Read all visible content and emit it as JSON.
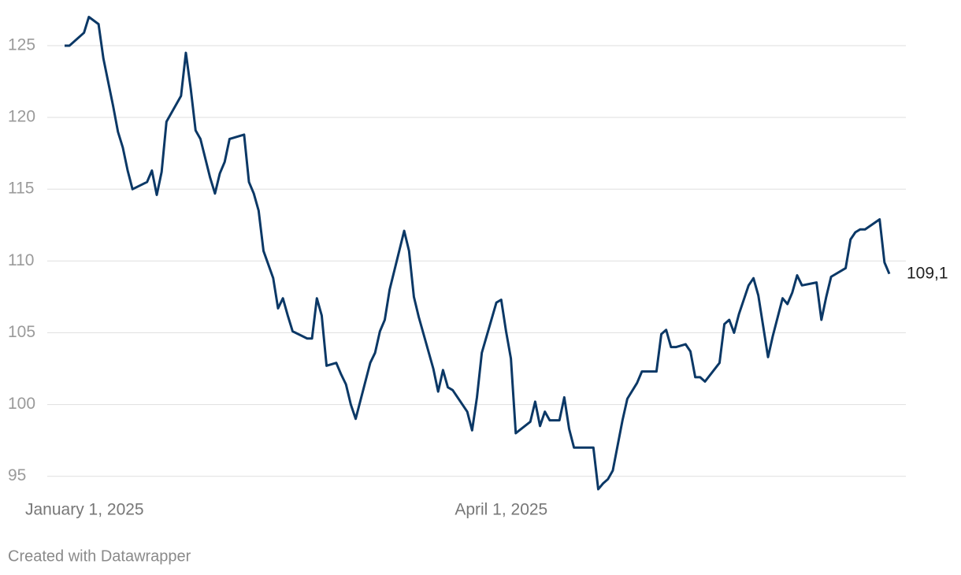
{
  "chart_data": {
    "type": "line",
    "x": [
      "2025-01-01",
      "2025-01-02",
      "2025-01-05",
      "2025-01-06",
      "2025-01-08",
      "2025-01-09",
      "2025-01-11",
      "2025-01-12",
      "2025-01-13",
      "2025-01-14",
      "2025-01-15",
      "2025-01-18",
      "2025-01-19",
      "2025-01-20",
      "2025-01-21",
      "2025-01-22",
      "2025-01-25",
      "2025-01-26",
      "2025-01-27",
      "2025-01-28",
      "2025-01-29",
      "2025-01-31",
      "2025-02-01",
      "2025-02-02",
      "2025-02-03",
      "2025-02-04",
      "2025-02-07",
      "2025-02-08",
      "2025-02-09",
      "2025-02-10",
      "2025-02-11",
      "2025-02-13",
      "2025-02-14",
      "2025-02-15",
      "2025-02-16",
      "2025-02-17",
      "2025-02-20",
      "2025-02-21",
      "2025-02-22",
      "2025-02-23",
      "2025-02-24",
      "2025-02-26",
      "2025-02-27",
      "2025-02-28",
      "2025-03-01",
      "2025-03-02",
      "2025-03-05",
      "2025-03-06",
      "2025-03-07",
      "2025-03-08",
      "2025-03-09",
      "2025-03-12",
      "2025-03-13",
      "2025-03-14",
      "2025-03-15",
      "2025-03-18",
      "2025-03-19",
      "2025-03-20",
      "2025-03-21",
      "2025-03-22",
      "2025-03-25",
      "2025-03-26",
      "2025-03-27",
      "2025-03-28",
      "2025-03-31",
      "2025-04-01",
      "2025-04-02",
      "2025-04-03",
      "2025-04-04",
      "2025-04-07",
      "2025-04-08",
      "2025-04-09",
      "2025-04-10",
      "2025-04-11",
      "2025-04-13",
      "2025-04-14",
      "2025-04-15",
      "2025-04-16",
      "2025-04-20",
      "2025-04-21",
      "2025-04-22",
      "2025-04-23",
      "2025-04-24",
      "2025-04-26",
      "2025-04-27",
      "2025-04-29",
      "2025-04-30",
      "2025-05-03",
      "2025-05-04",
      "2025-05-05",
      "2025-05-06",
      "2025-05-07",
      "2025-05-09",
      "2025-05-10",
      "2025-05-11",
      "2025-05-12",
      "2025-05-13",
      "2025-05-16",
      "2025-05-17",
      "2025-05-18",
      "2025-05-19",
      "2025-05-20",
      "2025-05-22",
      "2025-05-23",
      "2025-05-24",
      "2025-05-26",
      "2025-05-27",
      "2025-05-29",
      "2025-05-30",
      "2025-05-31",
      "2025-06-01",
      "2025-06-02",
      "2025-06-05",
      "2025-06-06",
      "2025-06-07",
      "2025-06-08",
      "2025-06-11",
      "2025-06-12",
      "2025-06-13",
      "2025-06-14",
      "2025-06-15",
      "2025-06-18",
      "2025-06-19",
      "2025-06-20"
    ],
    "series": [
      {
        "color": "#0b3866",
        "values": [
          125.0,
          125.0,
          125.9,
          127.0,
          126.5,
          124.1,
          120.8,
          119.0,
          117.9,
          116.3,
          115.0,
          115.5,
          116.3,
          114.6,
          116.2,
          119.7,
          121.5,
          124.5,
          122.0,
          119.1,
          118.5,
          115.8,
          114.7,
          116.1,
          116.9,
          118.5,
          118.8,
          115.5,
          114.7,
          113.5,
          110.7,
          108.8,
          106.7,
          107.4,
          106.2,
          105.1,
          104.6,
          104.6,
          107.4,
          106.2,
          102.7,
          102.9,
          102.1,
          101.4,
          100.0,
          99.0,
          102.9,
          103.6,
          105.1,
          105.9,
          108.0,
          112.1,
          110.7,
          107.5,
          106.1,
          102.5,
          100.9,
          102.4,
          101.2,
          101.0,
          99.5,
          98.2,
          100.5,
          103.6,
          107.1,
          107.3,
          105.1,
          103.2,
          98.0,
          98.8,
          100.2,
          98.5,
          99.5,
          98.9,
          98.9,
          100.5,
          98.3,
          97.0,
          97.0,
          94.1,
          94.5,
          94.8,
          95.4,
          98.9,
          100.4,
          101.5,
          102.3,
          102.3,
          104.9,
          105.2,
          104.0,
          104.0,
          104.2,
          103.7,
          101.9,
          101.9,
          101.6,
          102.9,
          105.6,
          105.9,
          105.0,
          106.3,
          108.3,
          108.8,
          107.6,
          103.3,
          104.8,
          107.4,
          107.0,
          107.8,
          109.0,
          108.3,
          108.5,
          105.9,
          107.5,
          108.9,
          109.5,
          111.5,
          112.0,
          112.2,
          112.2,
          112.9,
          109.9,
          109.1
        ],
        "value_labels": [
          null,
          null,
          null,
          null,
          null,
          null,
          null,
          null,
          null,
          null,
          null,
          null,
          null,
          null,
          null,
          null,
          null,
          null,
          null,
          null,
          null,
          null,
          null,
          null,
          null,
          null,
          null,
          null,
          null,
          null,
          null,
          null,
          null,
          null,
          null,
          null,
          null,
          null,
          null,
          null,
          null,
          null,
          null,
          null,
          null,
          null,
          null,
          null,
          null,
          null,
          null,
          null,
          null,
          null,
          null,
          null,
          null,
          null,
          null,
          null,
          null,
          null,
          null,
          null,
          null,
          null,
          null,
          null,
          null,
          null,
          null,
          null,
          null,
          null,
          null,
          null,
          null,
          null,
          null,
          null,
          null,
          null,
          null,
          null,
          null,
          null,
          null,
          null,
          null,
          null,
          null,
          null,
          null,
          null,
          null,
          null,
          null,
          null,
          null,
          null,
          null,
          null,
          null,
          null,
          null,
          null,
          null,
          null,
          null,
          null,
          null,
          null,
          null,
          null,
          null,
          null,
          null,
          null,
          null,
          null,
          null,
          null,
          null,
          "109,1"
        ]
      }
    ],
    "xlim": [
      "2025-01-01",
      "2025-06-20"
    ],
    "xticks": [
      {
        "value": "2025-01-01",
        "label": "January 1, 2025"
      },
      {
        "value": "2025-04-01",
        "label": "April 1, 2025"
      }
    ],
    "ylim": [
      93.5,
      127.5
    ],
    "yticks": [
      95,
      100,
      105,
      110,
      115,
      120,
      125
    ],
    "grid": true,
    "footer": "Created with Datawrapper"
  }
}
